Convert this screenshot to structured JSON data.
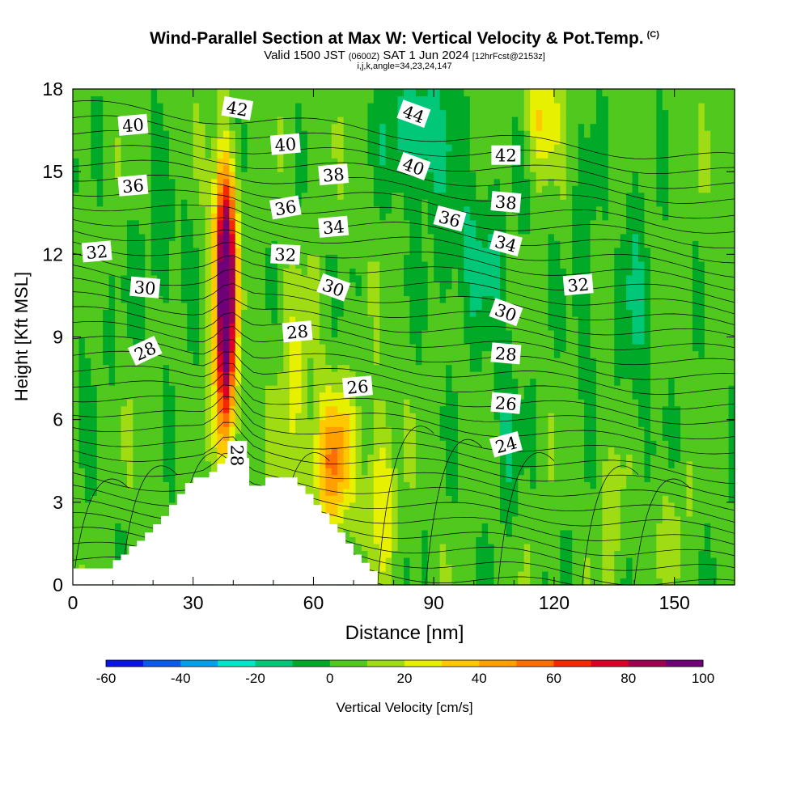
{
  "title": {
    "main": "Wind-Parallel Section at Max W: Vertical Velocity & Pot.Temp.",
    "copyright": "(C)",
    "valid_prefix": "Valid 1500 JST",
    "valid_zulu": "(0600Z)",
    "valid_date": "SAT 1 Jun 2024",
    "forecast": "[12hrFcst@2153z]",
    "indices": "i,j,k,angle=34,23,24,147"
  },
  "chart_data": {
    "type": "heatmap",
    "xlabel": "Distance [nm]",
    "ylabel": "Height [Kft MSL]",
    "xlim": [
      0,
      165
    ],
    "ylim": [
      0,
      18
    ],
    "x_ticks": [
      0,
      30,
      60,
      90,
      120,
      150
    ],
    "y_ticks": [
      0,
      3,
      6,
      9,
      12,
      15,
      18
    ],
    "colorbar": {
      "label": "Vertical Velocity [cm/s]",
      "levels": [
        -60,
        -50,
        -40,
        -30,
        -20,
        -10,
        0,
        10,
        20,
        30,
        40,
        50,
        60,
        70,
        80,
        90,
        100
      ],
      "tick_labels": [
        -60,
        -40,
        -20,
        0,
        20,
        40,
        60,
        80,
        100
      ],
      "colors": [
        "#0a14e6",
        "#0a5aeb",
        "#00a0eb",
        "#00e6c8",
        "#00c878",
        "#00aa28",
        "#50c81e",
        "#a0dc14",
        "#e6f000",
        "#ffc800",
        "#ffa000",
        "#ff6e00",
        "#f52800",
        "#dc0028",
        "#a00050",
        "#6e0078"
      ]
    },
    "terrain": {
      "x": [
        0,
        7,
        10,
        12,
        14,
        16,
        18,
        20,
        22,
        24,
        26,
        28,
        30,
        32,
        34,
        36,
        38,
        40,
        42,
        44,
        46,
        48,
        50,
        52,
        54,
        56,
        58,
        60,
        62,
        64,
        66,
        68,
        70,
        72,
        74,
        76
      ],
      "height": [
        0.6,
        0.6,
        0.9,
        1.1,
        1.4,
        1.6,
        1.9,
        2.2,
        2.5,
        2.9,
        3.3,
        3.7,
        3.9,
        3.9,
        4.1,
        4.4,
        4.6,
        4.6,
        4.6,
        3.6,
        3.6,
        3.9,
        3.9,
        3.9,
        3.9,
        3.6,
        3.3,
        2.9,
        2.6,
        2.2,
        1.9,
        1.5,
        1.1,
        0.8,
        0.5,
        0.3
      ]
    },
    "theta_contour_labels": [
      {
        "value": "40",
        "x": 15,
        "y": 16.7,
        "angle": -5
      },
      {
        "value": "36",
        "x": 15,
        "y": 14.5,
        "angle": -5
      },
      {
        "value": "32",
        "x": 6,
        "y": 12.1,
        "angle": -5
      },
      {
        "value": "30",
        "x": 18,
        "y": 10.8,
        "angle": 5
      },
      {
        "value": "28",
        "x": 18,
        "y": 8.5,
        "angle": -25
      },
      {
        "value": "42",
        "x": 41,
        "y": 17.3,
        "angle": 10
      },
      {
        "value": "40",
        "x": 53,
        "y": 16.0,
        "angle": -5
      },
      {
        "value": "36",
        "x": 53,
        "y": 13.7,
        "angle": -10
      },
      {
        "value": "32",
        "x": 53,
        "y": 12.0,
        "angle": 3
      },
      {
        "value": "38",
        "x": 65,
        "y": 14.9,
        "angle": -5
      },
      {
        "value": "34",
        "x": 65,
        "y": 13.0,
        "angle": -5
      },
      {
        "value": "30",
        "x": 65,
        "y": 10.8,
        "angle": 20
      },
      {
        "value": "28",
        "x": 56,
        "y": 9.2,
        "angle": -5
      },
      {
        "value": "26",
        "x": 71,
        "y": 7.2,
        "angle": -5
      },
      {
        "value": "28",
        "x": 41,
        "y": 4.7,
        "angle": 90
      },
      {
        "value": "44",
        "x": 85,
        "y": 17.1,
        "angle": 20
      },
      {
        "value": "40",
        "x": 85,
        "y": 15.2,
        "angle": 20
      },
      {
        "value": "36",
        "x": 94,
        "y": 13.3,
        "angle": 15
      },
      {
        "value": "42",
        "x": 108,
        "y": 15.6,
        "angle": 0
      },
      {
        "value": "38",
        "x": 108,
        "y": 13.9,
        "angle": 5
      },
      {
        "value": "34",
        "x": 108,
        "y": 12.4,
        "angle": 15
      },
      {
        "value": "30",
        "x": 108,
        "y": 9.9,
        "angle": 20
      },
      {
        "value": "28",
        "x": 108,
        "y": 8.4,
        "angle": 5
      },
      {
        "value": "26",
        "x": 108,
        "y": 6.6,
        "angle": 5
      },
      {
        "value": "24",
        "x": 108,
        "y": 5.1,
        "angle": -15
      },
      {
        "value": "32",
        "x": 126,
        "y": 10.9,
        "angle": -5
      }
    ],
    "w_features": [
      {
        "x": 38,
        "y": 9.5,
        "w": 2.5,
        "h": 4.6,
        "peak": 100
      },
      {
        "x": 38,
        "y": 12.8,
        "w": 3,
        "h": 3,
        "peak": 35
      },
      {
        "x": 65,
        "y": 4.5,
        "w": 5,
        "h": 2.6,
        "peak": 45
      },
      {
        "x": 77,
        "y": 3.5,
        "w": 3.5,
        "h": 3.0,
        "peak": 25
      },
      {
        "x": 55,
        "y": 7,
        "w": 4,
        "h": 4,
        "peak": 18
      },
      {
        "x": 86,
        "y": 16.5,
        "w": 8,
        "h": 2.2,
        "peak": -25
      },
      {
        "x": 100,
        "y": 12,
        "w": 10,
        "h": 3,
        "peak": -15
      },
      {
        "x": 108,
        "y": 5.5,
        "w": 3,
        "h": 3,
        "peak": -15
      },
      {
        "x": 117,
        "y": 17,
        "w": 4,
        "h": 2,
        "peak": 28
      },
      {
        "x": 128,
        "y": 11,
        "w": 3,
        "h": 4,
        "peak": -12
      },
      {
        "x": 140,
        "y": 10,
        "w": 4,
        "h": 6,
        "peak": -12
      },
      {
        "x": 22,
        "y": 12,
        "w": 6,
        "h": 3,
        "peak": -10
      },
      {
        "x": 5,
        "y": 9,
        "w": 5,
        "h": 3,
        "peak": -5
      },
      {
        "x": 135,
        "y": 3,
        "w": 4,
        "h": 3,
        "peak": 12
      },
      {
        "x": 150,
        "y": 2,
        "w": 4,
        "h": 2,
        "peak": 10
      }
    ]
  }
}
